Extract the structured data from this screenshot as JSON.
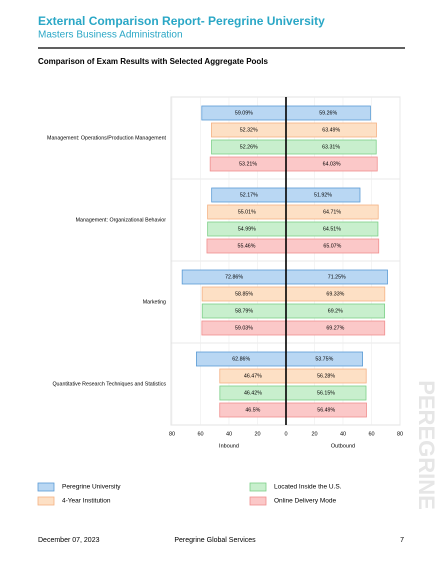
{
  "header": {
    "title": "External Comparison Report- Peregrine University",
    "subtitle": "Masters Business Administration"
  },
  "section_title": "Comparison of Exam Results with Selected Aggregate Pools",
  "chart_data": [
    {
      "type": "bar",
      "orientation": "horizontal",
      "direction": "left",
      "xlabel": "Inbound",
      "categories": [
        "Management: Operations/Production Management",
        "Management: Organizational Behavior",
        "Marketing",
        "Quantitative Research Techniques and Statistics"
      ],
      "xlim": [
        0,
        80
      ],
      "xticks": [
        0,
        20,
        40,
        60,
        80
      ],
      "grid": true,
      "series": [
        {
          "name": "Peregrine University",
          "color": "#b9d7f3",
          "stroke": "#5b9bd5",
          "values": [
            59.09,
            52.17,
            72.86,
            62.86
          ],
          "value_labels": [
            "59.09%",
            "52.17%",
            "72.86%",
            "62.86%"
          ]
        },
        {
          "name": "4-Year Institution",
          "color": "#fde0c5",
          "stroke": "#f4b183",
          "values": [
            52.32,
            55.01,
            58.85,
            46.47
          ],
          "value_labels": [
            "52.32%",
            "55.01%",
            "58.85%",
            "46.47%"
          ]
        },
        {
          "name": "Located Inside the U.S.",
          "color": "#c8efcd",
          "stroke": "#7dcf88",
          "values": [
            52.26,
            54.99,
            58.79,
            46.42
          ],
          "value_labels": [
            "52.26%",
            "54.99%",
            "58.79%",
            "46.42%"
          ]
        },
        {
          "name": "Online Delivery Mode",
          "color": "#fbc8c8",
          "stroke": "#f08f8f",
          "values": [
            53.21,
            55.46,
            59.03,
            46.5
          ],
          "value_labels": [
            "53.21%",
            "55.46%",
            "59.03%",
            "46.5%"
          ]
        }
      ]
    },
    {
      "type": "bar",
      "orientation": "horizontal",
      "direction": "right",
      "xlabel": "Outbound",
      "xlim": [
        0,
        80
      ],
      "xticks": [
        20,
        40,
        60,
        80
      ],
      "grid": true,
      "series": [
        {
          "color": "#b9d7f3",
          "stroke": "#5b9bd5",
          "values": [
            59.26,
            51.92,
            71.25,
            53.75
          ],
          "value_labels": [
            "59.26%",
            "51.92%",
            "71.25%",
            "53.75%"
          ]
        },
        {
          "color": "#fde0c5",
          "stroke": "#f4b183",
          "values": [
            63.49,
            64.71,
            69.33,
            56.28
          ],
          "value_labels": [
            "63.49%",
            "64.71%",
            "69.33%",
            "56.28%"
          ]
        },
        {
          "color": "#c8efcd",
          "stroke": "#7dcf88",
          "values": [
            63.31,
            64.51,
            69.2,
            56.15
          ],
          "value_labels": [
            "63.31%",
            "64.51%",
            "69.2%",
            "56.15%"
          ]
        },
        {
          "color": "#fbc8c8",
          "stroke": "#f08f8f",
          "values": [
            64.03,
            65.07,
            69.27,
            56.49
          ],
          "value_labels": [
            "64.03%",
            "65.07%",
            "69.27%",
            "56.49%"
          ]
        }
      ]
    }
  ],
  "watermark": "PEREGRINE",
  "footer": {
    "date": "December 07, 2023",
    "org": "Peregrine Global Services",
    "page": "7"
  }
}
